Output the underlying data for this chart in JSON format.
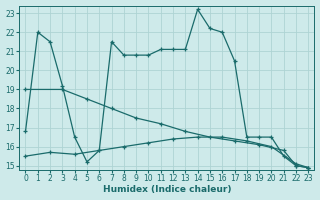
{
  "xlabel": "Humidex (Indice chaleur)",
  "bg_color": "#ceeaea",
  "line_color": "#1a6b6b",
  "grid_color": "#aed4d4",
  "xlim": [
    -0.5,
    23.5
  ],
  "ylim": [
    14.8,
    23.4
  ],
  "yticks": [
    15,
    16,
    17,
    18,
    19,
    20,
    21,
    22,
    23
  ],
  "xticks": [
    0,
    1,
    2,
    3,
    4,
    5,
    6,
    7,
    8,
    9,
    10,
    11,
    12,
    13,
    14,
    15,
    16,
    17,
    18,
    19,
    20,
    21,
    22,
    23
  ],
  "series": [
    {
      "x": [
        0,
        1,
        2,
        3,
        4,
        5,
        6,
        7,
        8,
        9,
        10,
        11,
        12,
        13,
        14,
        15,
        16,
        17,
        18,
        19,
        20,
        21,
        22,
        23
      ],
      "y": [
        16.8,
        22.0,
        21.5,
        19.2,
        16.5,
        15.2,
        15.8,
        21.5,
        20.8,
        20.8,
        20.8,
        21.1,
        21.1,
        21.1,
        23.2,
        22.2,
        22.0,
        20.5,
        16.5,
        16.5,
        16.5,
        15.5,
        15.0,
        14.9
      ]
    },
    {
      "x": [
        0,
        3,
        5,
        7,
        9,
        11,
        13,
        15,
        17,
        19,
        21,
        22,
        23
      ],
      "y": [
        19.0,
        19.0,
        18.5,
        18.0,
        17.5,
        17.2,
        16.8,
        16.5,
        16.3,
        16.1,
        15.8,
        15.0,
        14.9
      ]
    },
    {
      "x": [
        0,
        2,
        4,
        6,
        8,
        10,
        12,
        14,
        16,
        18,
        20,
        22,
        23
      ],
      "y": [
        15.5,
        15.7,
        15.6,
        15.8,
        16.0,
        16.2,
        16.4,
        16.5,
        16.5,
        16.3,
        16.0,
        15.1,
        14.9
      ]
    }
  ]
}
